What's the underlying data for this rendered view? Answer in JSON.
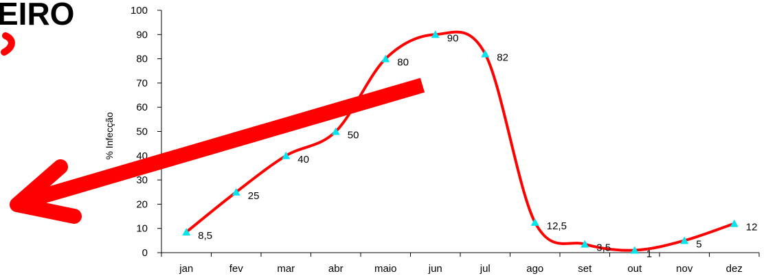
{
  "cropped_title_fragment": "EIRO",
  "colors": {
    "line": "#ff0000",
    "marker": "#00e5ee",
    "arrow": "#ff0000",
    "axis": "#000000"
  },
  "chart_data": {
    "type": "line",
    "title": "",
    "xlabel": "",
    "ylabel": "% Infecção",
    "ylim": [
      0,
      100
    ],
    "yticks": [
      "0",
      "10",
      "20",
      "30",
      "40",
      "50",
      "60",
      "70",
      "80",
      "90",
      "100"
    ],
    "categories": [
      "jan",
      "fev",
      "mar",
      "abr",
      "maio",
      "jun",
      "jul",
      "ago",
      "set",
      "out",
      "nov",
      "dez"
    ],
    "series": [
      {
        "values": [
          8.5,
          25,
          40,
          50,
          80,
          90,
          82,
          12.5,
          3.5,
          1,
          5,
          12
        ],
        "labels": [
          "8,5",
          "25",
          "40",
          "50",
          "80",
          "90",
          "82",
          "12,5",
          "3,5",
          "1",
          "5",
          "12"
        ],
        "marker": "triangle",
        "smooth": true
      }
    ],
    "grid": false,
    "legend": "none"
  }
}
